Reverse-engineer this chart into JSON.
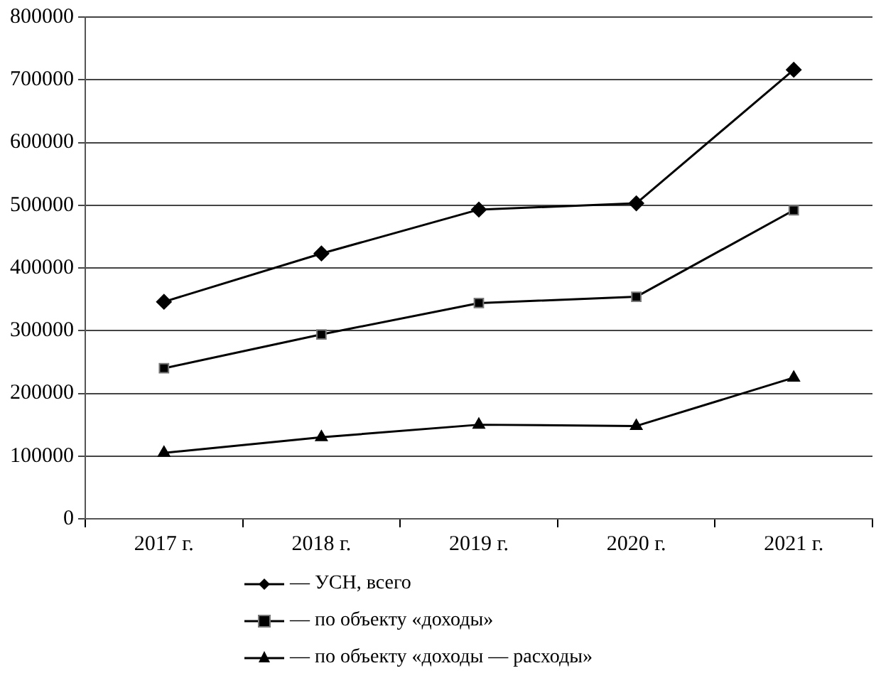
{
  "chart_data": {
    "type": "line",
    "categories": [
      "2017 г.",
      "2018 г.",
      "2019 г.",
      "2020 г.",
      "2021 г."
    ],
    "series": [
      {
        "name": "— УСН, всего",
        "color": "#000000",
        "marker": "diamond",
        "values": [
          346000,
          423000,
          493000,
          503000,
          716000
        ]
      },
      {
        "name": "— по объекту «доходы»",
        "color": "#000000",
        "marker": "square",
        "values": [
          240000,
          294000,
          344000,
          354000,
          492000
        ]
      },
      {
        "name": "— по объекту «доходы — расходы»",
        "color": "#000000",
        "marker": "triangle",
        "values": [
          105000,
          130000,
          150000,
          148000,
          225000
        ]
      }
    ],
    "ylim": [
      0,
      800000
    ],
    "yticks": [
      0,
      100000,
      200000,
      300000,
      400000,
      500000,
      600000,
      700000,
      800000
    ],
    "grid": "y",
    "legend": "bottom",
    "line_style": "solid"
  }
}
